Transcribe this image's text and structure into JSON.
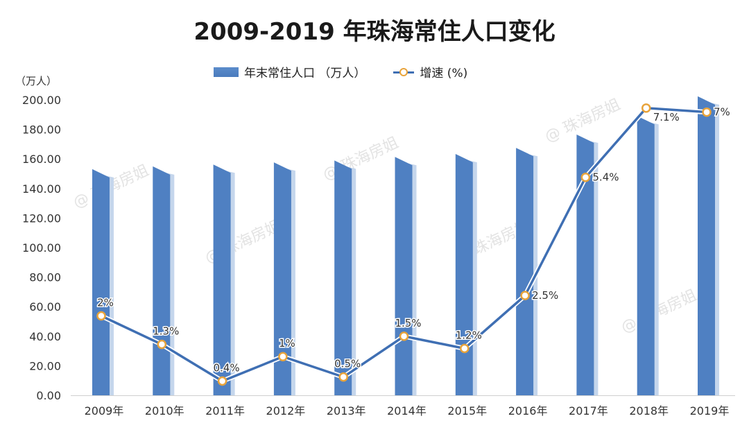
{
  "title": "2009-2019 年珠海常住人口变化",
  "watermark": "@ 珠海房姐",
  "colors": {
    "bar": "#4f80c2",
    "bar_shadow": "#c5d6ec",
    "line": "#3f6fb3",
    "marker": "#e8a33a"
  },
  "chart_data": {
    "type": "bar+line",
    "title": "2009-2019 年珠海常住人口变化",
    "ylabel": "（万人）",
    "ylim": [
      0,
      200
    ],
    "yticks": [
      "0.00",
      "20.00",
      "40.00",
      "60.00",
      "80.00",
      "100.00",
      "120.00",
      "140.00",
      "160.00",
      "180.00",
      "200.00"
    ],
    "y2lim": [
      0,
      7.25
    ],
    "grid": false,
    "legend": "top",
    "categories": [
      "2009年",
      "2010年",
      "2011年",
      "2012年",
      "2013年",
      "2014年",
      "2015年",
      "2016年",
      "2017年",
      "2018年",
      "2019年"
    ],
    "series": [
      {
        "name": "年末常住人口 （万人）",
        "type": "bar",
        "axis": "left",
        "values": [
          153.1,
          155.0,
          156.2,
          157.7,
          159.0,
          161.4,
          163.4,
          167.5,
          176.5,
          189.1,
          202.4
        ]
      },
      {
        "name": "增速 (%)",
        "type": "line",
        "axis": "right",
        "values": [
          2,
          1.3,
          0.4,
          1,
          0.5,
          1.5,
          1.2,
          2.5,
          5.4,
          7.1,
          7
        ],
        "labels": [
          "2%",
          "1.3%",
          "0.4%",
          "1%",
          "0.5%",
          "1.5%",
          "1.2%",
          "2.5%",
          "5.4%",
          "7.1%",
          "7%"
        ]
      }
    ]
  }
}
